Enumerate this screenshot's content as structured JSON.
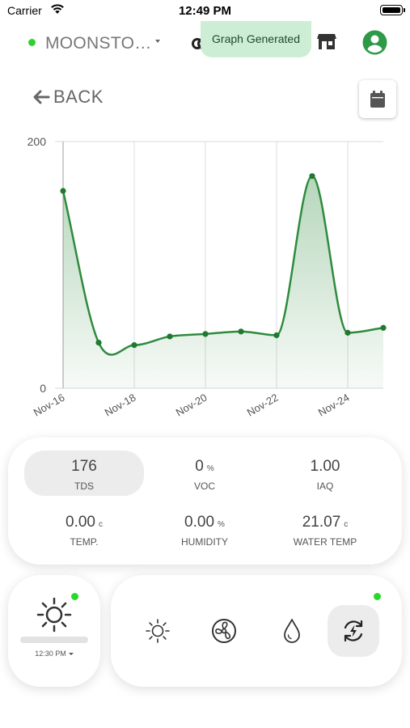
{
  "status_bar": {
    "carrier": "Carrier",
    "time": "12:49 PM"
  },
  "header": {
    "device_name": "MOONSTO…",
    "toast": "Graph Generated"
  },
  "nav": {
    "back_label": "BACK"
  },
  "colors": {
    "accent_green": "#2e8b3e",
    "online_dot": "#2fd12f",
    "toast_bg": "#cdeed5"
  },
  "chart_data": {
    "type": "area",
    "x": [
      "Nov-16",
      "Nov-17",
      "Nov-18",
      "Nov-19",
      "Nov-20",
      "Nov-21",
      "Nov-22",
      "Nov-23",
      "Nov-24",
      "Nov-25"
    ],
    "values": [
      160,
      37,
      35,
      42,
      44,
      46,
      43,
      172,
      45,
      49
    ],
    "x_tick_labels": [
      "Nov-16",
      "Nov-18",
      "Nov-20",
      "Nov-22",
      "Nov-24"
    ],
    "y_tick_labels": [
      "0",
      "200"
    ],
    "ylim": [
      0,
      200
    ],
    "grid": true,
    "color": "#2e8b3e"
  },
  "metrics": [
    {
      "value": "176",
      "unit": "",
      "label": "TDS",
      "active": true
    },
    {
      "value": "0",
      "unit": "%",
      "label": "VOC",
      "active": false
    },
    {
      "value": "1.00",
      "unit": "",
      "label": "IAQ",
      "active": false
    },
    {
      "value": "0.00",
      "unit": "c",
      "label": "TEMP.",
      "active": false
    },
    {
      "value": "0.00",
      "unit": "%",
      "label": "HUMIDITY",
      "active": false
    },
    {
      "value": "21.07",
      "unit": "c",
      "label": "WATER TEMP",
      "active": false
    }
  ],
  "light": {
    "time": "12:30 PM",
    "icon": "sun-icon"
  },
  "modes": [
    {
      "icon": "light-mode-icon",
      "active": false
    },
    {
      "icon": "fan-icon",
      "active": false
    },
    {
      "icon": "water-drop-icon",
      "active": false
    },
    {
      "icon": "auto-cycle-icon",
      "active": true
    }
  ]
}
